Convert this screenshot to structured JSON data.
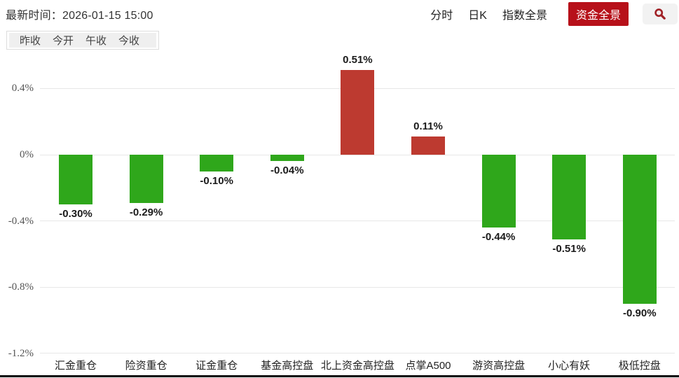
{
  "header": {
    "latest_time_label": "最新时间：",
    "latest_time_value": "2026-01-15 15:00",
    "tabs": [
      {
        "label": "分时",
        "active": false
      },
      {
        "label": "日K",
        "active": false
      },
      {
        "label": "指数全景",
        "active": false
      },
      {
        "label": "资金全景",
        "active": true
      }
    ],
    "search_icon": "magnifier-icon"
  },
  "price_buttons": [
    "昨收",
    "今开",
    "午收",
    "今收"
  ],
  "colors": {
    "positive_bar": "#bd3a30",
    "negative_bar": "#2fa71b",
    "active_tab_bg": "#b7111a",
    "active_tab_text": "#ffffff",
    "search_icon": "#a02025",
    "grid_line": "#e7e7e7",
    "axis_label": "#555555",
    "value_label": "#1b1b1b",
    "bottom_line": "#000000"
  },
  "chart_data": {
    "type": "bar",
    "title": "",
    "xlabel": "",
    "ylabel": "",
    "unit": "%",
    "categories": [
      "汇金重仓",
      "险资重仓",
      "证金重仓",
      "基金高控盘",
      "北上资金高控盘",
      "点掌A500",
      "游资高控盘",
      "小心有妖",
      "极低控盘"
    ],
    "values": [
      -0.3,
      -0.29,
      -0.1,
      -0.04,
      0.51,
      0.11,
      -0.44,
      -0.51,
      -0.9
    ],
    "labels": [
      "-0.30%",
      "-0.29%",
      "-0.10%",
      "-0.04%",
      "0.51%",
      "0.11%",
      "-0.44%",
      "-0.51%",
      "-0.90%"
    ],
    "ylim": [
      -1.2,
      0.55
    ],
    "yticks": [
      0.4,
      0,
      -0.4,
      -0.8,
      -1.2
    ],
    "ytick_labels": [
      "0.4%",
      "0%",
      "-0.4%",
      "-0.8%",
      "-1.2%"
    ],
    "grid": true,
    "legend": null,
    "bar_color_rule": "positive=red, negative=green"
  }
}
